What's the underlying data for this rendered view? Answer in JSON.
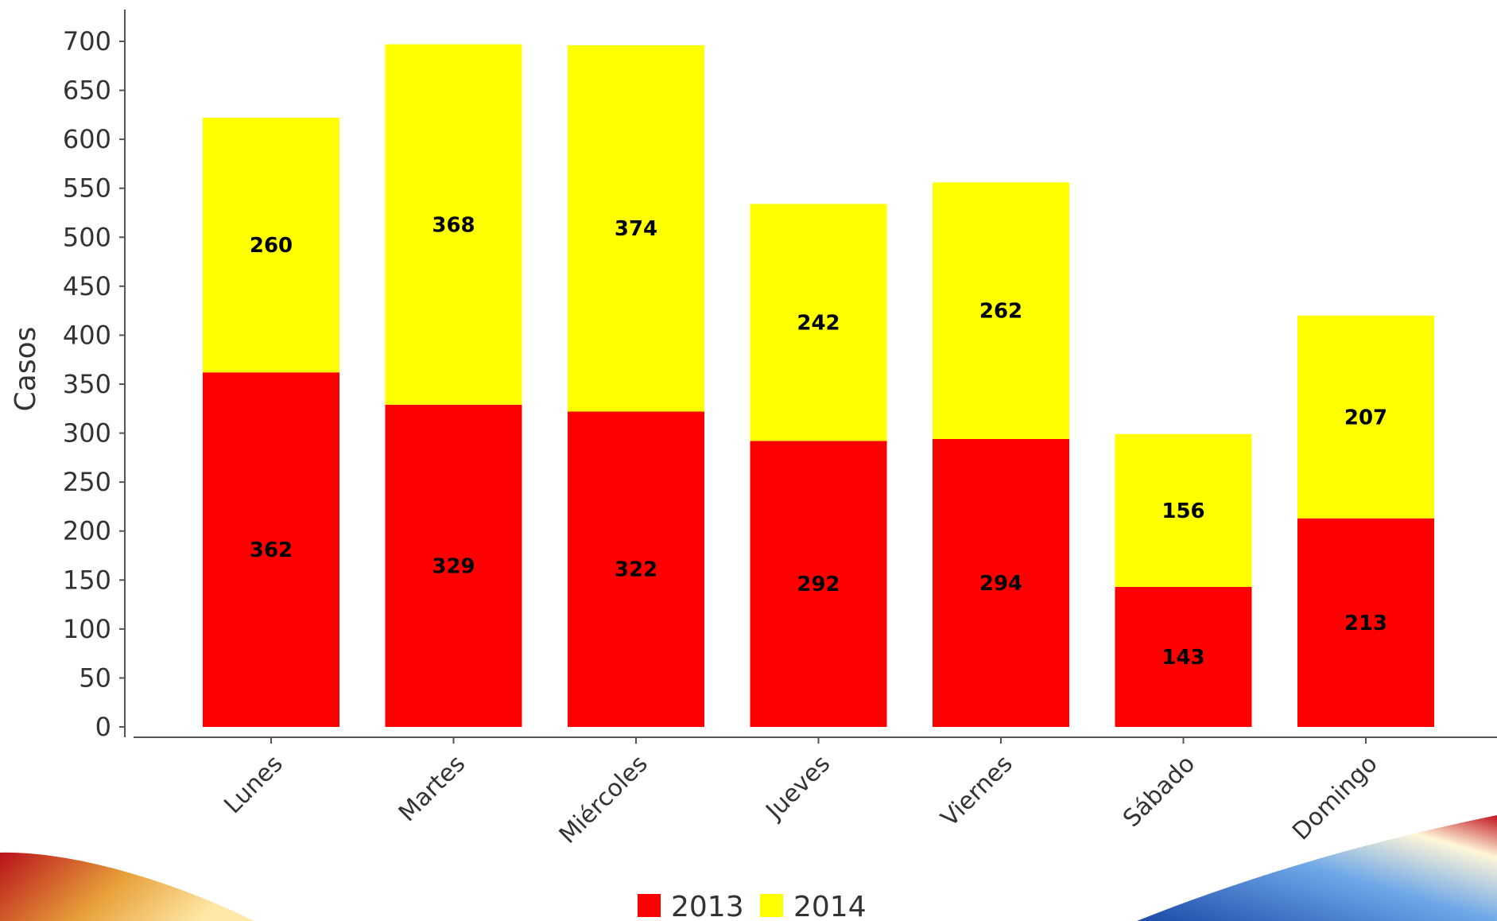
{
  "chart_data": {
    "type": "bar",
    "stacked": true,
    "ylabel": "Casos",
    "xlabel": "",
    "ylim": [
      0,
      700
    ],
    "yticks": [
      0,
      50,
      100,
      150,
      200,
      250,
      300,
      350,
      400,
      450,
      500,
      550,
      600,
      650,
      700
    ],
    "grid": false,
    "legend_placement": "bottom-center",
    "categories": [
      "Lunes",
      "Martes",
      "Miércoles",
      "Jueves",
      "Viernes",
      "Sábado",
      "Domingo"
    ],
    "series": [
      {
        "name": "2013",
        "color": "#ff0000",
        "values": [
          362,
          329,
          322,
          292,
          294,
          143,
          213
        ]
      },
      {
        "name": "2014",
        "color": "#ffff00",
        "values": [
          260,
          368,
          374,
          242,
          262,
          156,
          207
        ]
      }
    ]
  }
}
